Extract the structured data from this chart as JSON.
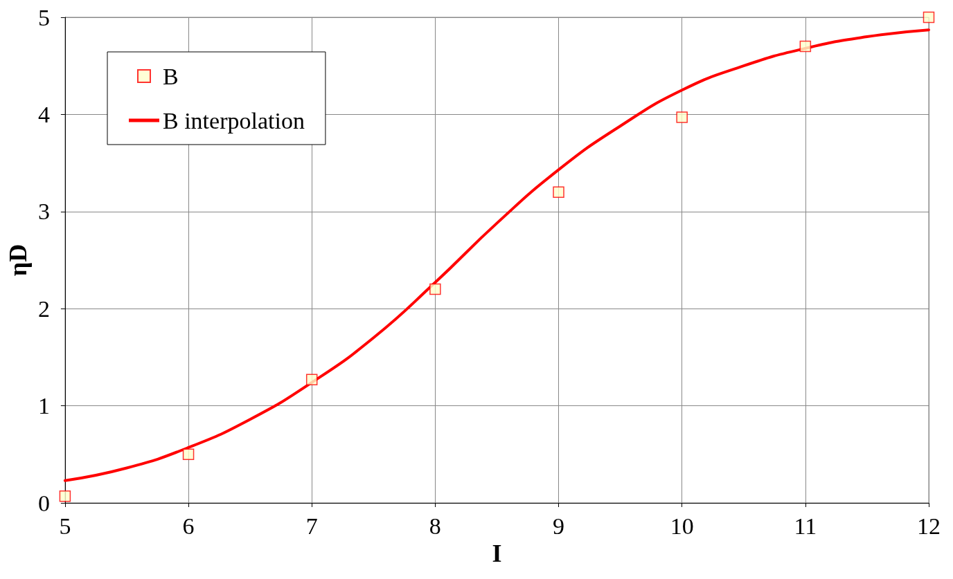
{
  "chart_data": {
    "type": "scatter",
    "xlabel": "I",
    "ylabel": "ηD",
    "xlim": [
      5,
      12
    ],
    "xticks": [
      5,
      6,
      7,
      8,
      9,
      10,
      11,
      12
    ],
    "ylim": [
      0,
      5
    ],
    "yticks": [
      0,
      1,
      2,
      3,
      4,
      5
    ],
    "grid": true,
    "legend": "top left",
    "marker": "square",
    "series": [
      {
        "name": "B",
        "color": "#ff0000",
        "x": [
          5,
          6,
          7,
          8,
          9,
          10,
          11,
          12
        ],
        "values": [
          0.07,
          0.5,
          1.27,
          2.2,
          3.2,
          3.97,
          4.7,
          5.0
        ]
      },
      {
        "name": "B interpolation",
        "type": "line",
        "marker": "none",
        "color": "#ff0000",
        "x": [
          5,
          5.5,
          6,
          6.5,
          7,
          7.5,
          8,
          8.5,
          9,
          9.5,
          10,
          10.5,
          11,
          11.5,
          12
        ],
        "values": [
          0.23,
          0.36,
          0.57,
          0.86,
          1.24,
          1.7,
          2.27,
          2.88,
          3.43,
          3.88,
          4.25,
          4.5,
          4.68,
          4.8,
          4.87
        ]
      }
    ]
  }
}
